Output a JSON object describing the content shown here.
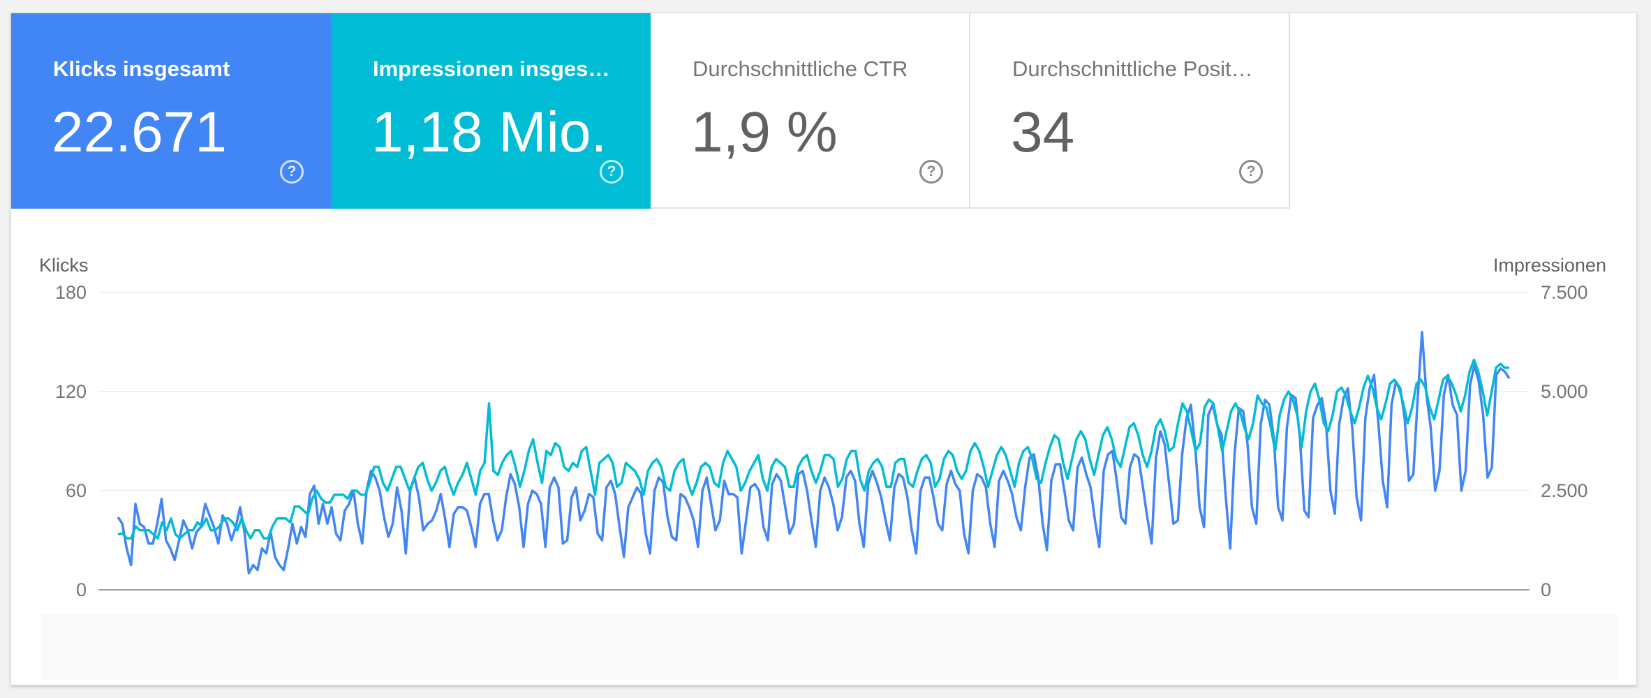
{
  "metrics": [
    {
      "label": "Klicks insgesamt",
      "value": "22.671",
      "active": true,
      "color": "#4285f4",
      "help_icon": "help-circle-icon",
      "help_glyph": "?"
    },
    {
      "label": "Impressionen insgesamt",
      "value": "1,18 Mio.",
      "active": true,
      "color": "#00bcd4",
      "help_icon": "help-circle-icon",
      "help_glyph": "?"
    },
    {
      "label": "Durchschnittliche CTR",
      "value": "1,9 %",
      "active": false,
      "color": "#ffffff",
      "help_icon": "help-circle-icon",
      "help_glyph": "?"
    },
    {
      "label": "Durchschnittliche Position",
      "value": "34",
      "active": false,
      "color": "#ffffff",
      "help_icon": "help-circle-icon",
      "help_glyph": "?"
    }
  ],
  "chart_data": {
    "type": "line",
    "left_axis": {
      "title": "Klicks",
      "ticks": [
        "180",
        "120",
        "60",
        "0"
      ],
      "range": [
        0,
        180
      ]
    },
    "right_axis": {
      "title": "Impressionen",
      "ticks": [
        "7.500",
        "5.000",
        "2.500",
        "0"
      ],
      "range": [
        0,
        7500
      ]
    },
    "grid": true,
    "series": [
      {
        "axis": "left",
        "color": "#4285f4",
        "values": [
          44,
          40,
          25,
          15,
          52,
          40,
          38,
          28,
          28,
          40,
          55,
          30,
          25,
          18,
          30,
          42,
          36,
          25,
          35,
          38,
          52,
          45,
          38,
          28,
          45,
          40,
          30,
          38,
          50,
          35,
          10,
          15,
          12,
          25,
          22,
          35,
          20,
          15,
          12,
          25,
          40,
          28,
          38,
          32,
          58,
          63,
          40,
          52,
          40,
          50,
          34,
          30,
          48,
          52,
          60,
          40,
          28,
          60,
          72,
          68,
          60,
          44,
          32,
          40,
          62,
          48,
          22,
          60,
          68,
          56,
          36,
          40,
          42,
          48,
          58,
          43,
          26,
          46,
          50,
          50,
          48,
          38,
          26,
          52,
          58,
          58,
          42,
          30,
          36,
          56,
          70,
          64,
          50,
          26,
          52,
          60,
          58,
          52,
          26,
          62,
          68,
          62,
          28,
          30,
          56,
          62,
          42,
          48,
          58,
          56,
          34,
          30,
          62,
          66,
          58,
          38,
          20,
          50,
          56,
          62,
          58,
          34,
          22,
          60,
          68,
          65,
          44,
          32,
          30,
          58,
          56,
          50,
          42,
          26,
          60,
          68,
          52,
          36,
          42,
          66,
          58,
          58,
          56,
          22,
          42,
          62,
          64,
          60,
          38,
          30,
          64,
          70,
          66,
          50,
          34,
          40,
          70,
          72,
          60,
          42,
          26,
          60,
          68,
          62,
          52,
          36,
          44,
          68,
          72,
          66,
          40,
          26,
          64,
          72,
          65,
          56,
          42,
          30,
          62,
          70,
          68,
          56,
          36,
          22,
          60,
          68,
          68,
          56,
          40,
          36,
          64,
          72,
          64,
          60,
          34,
          22,
          60,
          70,
          68,
          62,
          40,
          26,
          66,
          72,
          66,
          58,
          44,
          36,
          62,
          80,
          82,
          68,
          40,
          24,
          66,
          76,
          76,
          60,
          42,
          36,
          74,
          80,
          70,
          62,
          42,
          26,
          72,
          82,
          84,
          66,
          44,
          40,
          74,
          82,
          80,
          62,
          44,
          28,
          80,
          96,
          88,
          64,
          40,
          42,
          82,
          104,
          112,
          86,
          50,
          38,
          106,
          112,
          100,
          94,
          56,
          25,
          82,
          110,
          108,
          88,
          50,
          40,
          100,
          115,
          112,
          92,
          50,
          42,
          98,
          118,
          116,
          92,
          48,
          44,
          104,
          112,
          116,
          100,
          60,
          46,
          100,
          116,
          122,
          98,
          56,
          42,
          104,
          122,
          130,
          100,
          66,
          50,
          112,
          126,
          122,
          104,
          66,
          70,
          116,
          156,
          118,
          98,
          60,
          72,
          118,
          130,
          112,
          106,
          60,
          72,
          124,
          136,
          126,
          106,
          68,
          74,
          130,
          134,
          132,
          128
        ]
      },
      {
        "axis": "right",
        "color": "#00bcd4",
        "values": [
          1400,
          1420,
          1300,
          1300,
          1600,
          1500,
          1500,
          1500,
          1400,
          1300,
          1700,
          1500,
          1800,
          1400,
          1300,
          1400,
          1500,
          1500,
          1700,
          1600,
          1800,
          1500,
          1500,
          1600,
          1800,
          1800,
          1700,
          1500,
          1800,
          1500,
          1300,
          1500,
          1500,
          1300,
          1300,
          1600,
          1800,
          1800,
          1800,
          1700,
          2100,
          2100,
          2000,
          1900,
          2300,
          2500,
          2300,
          2200,
          2200,
          2400,
          2400,
          2400,
          2300,
          2500,
          2500,
          2400,
          2400,
          2700,
          3100,
          3100,
          2700,
          2500,
          2800,
          3100,
          3100,
          2800,
          2500,
          2800,
          3100,
          3200,
          2800,
          2500,
          2700,
          3000,
          3100,
          2700,
          2400,
          2700,
          2900,
          3200,
          2800,
          2400,
          3000,
          3200,
          4700,
          3000,
          2900,
          3200,
          3400,
          3500,
          3100,
          2600,
          3000,
          3500,
          3800,
          3200,
          2700,
          3500,
          3400,
          3700,
          3600,
          3100,
          3000,
          3200,
          3100,
          3500,
          3600,
          3000,
          2400,
          3200,
          3300,
          3400,
          3200,
          2600,
          2700,
          3200,
          3100,
          3000,
          2800,
          2400,
          3000,
          3200,
          3300,
          3100,
          2600,
          2500,
          3000,
          3200,
          3300,
          2700,
          2400,
          2700,
          3100,
          3200,
          3100,
          2700,
          2600,
          3200,
          3500,
          3300,
          3100,
          2500,
          2700,
          3000,
          3200,
          3400,
          2800,
          2500,
          3100,
          3300,
          3200,
          3100,
          2600,
          2600,
          3100,
          3300,
          3400,
          3000,
          2700,
          3000,
          3400,
          3400,
          3300,
          2600,
          2800,
          3300,
          3500,
          3500,
          2800,
          2500,
          3000,
          3200,
          3300,
          3100,
          2600,
          2600,
          3200,
          3300,
          3300,
          2700,
          2600,
          3000,
          3300,
          3400,
          3200,
          2600,
          2800,
          3300,
          3500,
          3400,
          3000,
          2800,
          3000,
          3500,
          3700,
          3500,
          3100,
          2600,
          3000,
          3400,
          3600,
          3400,
          3000,
          2600,
          3200,
          3500,
          3600,
          3300,
          2800,
          2700,
          3200,
          3600,
          3900,
          3800,
          3200,
          2800,
          3300,
          3800,
          4000,
          3800,
          3300,
          2900,
          3400,
          3900,
          4100,
          3800,
          3300,
          3100,
          3600,
          4100,
          4200,
          3900,
          3400,
          3100,
          3500,
          4100,
          4300,
          4000,
          3500,
          3600,
          4200,
          4700,
          4500,
          4000,
          3500,
          3700,
          4600,
          4800,
          4700,
          4100,
          3500,
          4000,
          4500,
          4700,
          4500,
          4100,
          3800,
          4200,
          4900,
          4700,
          4600,
          4100,
          3500,
          4400,
          4800,
          5000,
          4800,
          4400,
          3600,
          4500,
          5000,
          5200,
          4800,
          4200,
          4000,
          4400,
          5000,
          5100,
          4900,
          4500,
          4200,
          4600,
          5100,
          5400,
          5100,
          4600,
          4300,
          4700,
          5200,
          5300,
          5100,
          4700,
          4200,
          4600,
          5200,
          5300,
          5100,
          4600,
          4300,
          4800,
          5300,
          5400,
          5200,
          4900,
          4500,
          4900,
          5500,
          5800,
          5500,
          5000,
          4400,
          5000,
          5600,
          5700,
          5600,
          5600
        ]
      }
    ]
  }
}
